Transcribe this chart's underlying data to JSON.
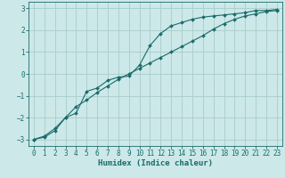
{
  "xlabel": "Humidex (Indice chaleur)",
  "ylabel": "",
  "xlim": [
    -0.5,
    23.5
  ],
  "ylim": [
    -3.3,
    3.3
  ],
  "xticks": [
    0,
    1,
    2,
    3,
    4,
    5,
    6,
    7,
    8,
    9,
    10,
    11,
    12,
    13,
    14,
    15,
    16,
    17,
    18,
    19,
    20,
    21,
    22,
    23
  ],
  "yticks": [
    -3,
    -2,
    -1,
    0,
    1,
    2,
    3
  ],
  "background_color": "#cce8e8",
  "grid_color": "#aacccc",
  "line_color": "#1a6b6b",
  "curve1_x": [
    0,
    1,
    2,
    3,
    4,
    5,
    6,
    7,
    8,
    9,
    10,
    11,
    12,
    13,
    14,
    15,
    16,
    17,
    18,
    19,
    20,
    21,
    22,
    23
  ],
  "curve1_y": [
    -3.0,
    -2.9,
    -2.6,
    -2.0,
    -1.8,
    -0.8,
    -0.65,
    -0.3,
    -0.15,
    -0.1,
    0.4,
    1.3,
    1.85,
    2.2,
    2.35,
    2.5,
    2.6,
    2.65,
    2.7,
    2.75,
    2.8,
    2.9,
    2.9,
    2.95
  ],
  "curve2_x": [
    0,
    1,
    2,
    3,
    4,
    5,
    6,
    7,
    8,
    9,
    10,
    11,
    12,
    13,
    14,
    15,
    16,
    17,
    18,
    19,
    20,
    21,
    22,
    23
  ],
  "curve2_y": [
    -3.0,
    -2.85,
    -2.5,
    -2.0,
    -1.5,
    -1.2,
    -0.85,
    -0.55,
    -0.25,
    0.0,
    0.25,
    0.5,
    0.75,
    1.0,
    1.25,
    1.5,
    1.75,
    2.05,
    2.3,
    2.5,
    2.65,
    2.75,
    2.85,
    2.9
  ],
  "marker": "D",
  "markersize": 2,
  "linewidth": 0.8,
  "tick_fontsize": 5.5,
  "xlabel_fontsize": 6.5
}
